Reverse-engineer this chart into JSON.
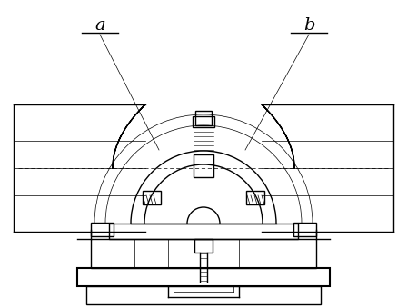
{
  "bg_color": "#ffffff",
  "line_color": "#000000",
  "line_width": 1.0,
  "thin_lw": 0.5,
  "thick_lw": 1.5,
  "label_a": "a",
  "label_b": "b",
  "figsize": [
    4.48,
    3.39
  ],
  "dpi": 100
}
